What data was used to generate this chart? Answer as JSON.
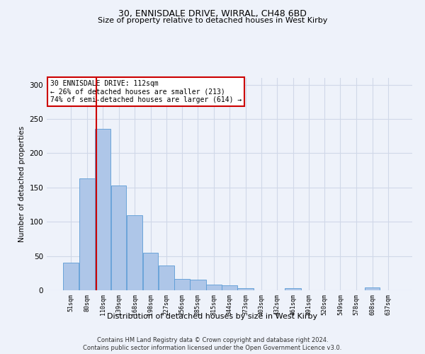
{
  "title1": "30, ENNISDALE DRIVE, WIRRAL, CH48 6BD",
  "title2": "Size of property relative to detached houses in West Kirby",
  "xlabel": "Distribution of detached houses by size in West Kirby",
  "ylabel": "Number of detached properties",
  "footer1": "Contains HM Land Registry data © Crown copyright and database right 2024.",
  "footer2": "Contains public sector information licensed under the Open Government Licence v3.0.",
  "annotation_line1": "30 ENNISDALE DRIVE: 112sqm",
  "annotation_line2": "← 26% of detached houses are smaller (213)",
  "annotation_line3": "74% of semi-detached houses are larger (614) →",
  "property_size": 112,
  "bar_edges": [
    51,
    80,
    110,
    139,
    168,
    198,
    227,
    256,
    285,
    315,
    344,
    373,
    403,
    432,
    461,
    491,
    520,
    549,
    578,
    608,
    637
  ],
  "bar_heights": [
    40,
    163,
    236,
    153,
    110,
    55,
    36,
    17,
    15,
    8,
    7,
    3,
    0,
    0,
    3,
    0,
    0,
    0,
    0,
    4,
    0
  ],
  "bar_color": "#aec6e8",
  "bar_edgecolor": "#5b9bd5",
  "vline_color": "#cc0000",
  "annotation_box_edgecolor": "#cc0000",
  "annotation_box_facecolor": "#ffffff",
  "grid_color": "#d0d8e8",
  "ylim": [
    0,
    310
  ],
  "yticks": [
    0,
    50,
    100,
    150,
    200,
    250,
    300
  ],
  "background_color": "#eef2fa"
}
